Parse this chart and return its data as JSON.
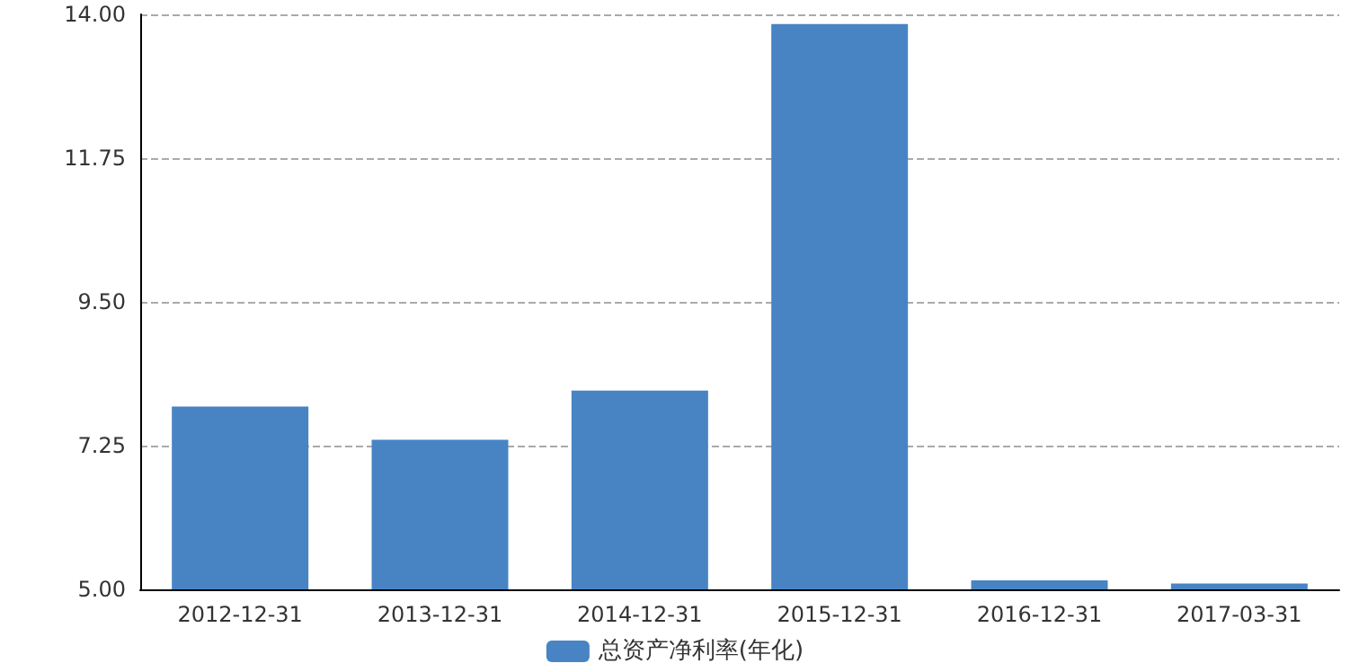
{
  "chart_data": {
    "type": "bar",
    "categories": [
      "2012-12-31",
      "2013-12-31",
      "2014-12-31",
      "2015-12-31",
      "2016-12-31",
      "2017-03-31"
    ],
    "series": [
      {
        "name": "总资产净利率(年化)",
        "color": "#4884c4",
        "values": [
          7.86,
          7.34,
          8.11,
          13.85,
          5.14,
          5.09
        ]
      }
    ],
    "ylim": [
      5,
      14
    ],
    "yticks": [
      {
        "value": 5,
        "label": "5.00"
      },
      {
        "value": 7.25,
        "label": "7.25"
      },
      {
        "value": 9.5,
        "label": "9.50"
      },
      {
        "value": 11.75,
        "label": "11.75"
      },
      {
        "value": 14,
        "label": "14.00"
      }
    ],
    "grid": "y",
    "legend": "bottom"
  }
}
